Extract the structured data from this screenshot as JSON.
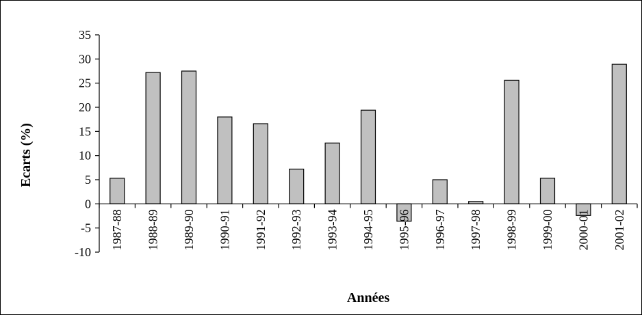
{
  "chart_data": {
    "type": "bar",
    "categories": [
      "1987-88",
      "1988-89",
      "1989-90",
      "1990-91",
      "1991-92",
      "1992-93",
      "1993-94",
      "1994-95",
      "1995-96",
      "1996-97",
      "1997-98",
      "1998-99",
      "1999-00",
      "2000-01",
      "2001-02"
    ],
    "values": [
      5.3,
      27.2,
      27.5,
      18.0,
      16.6,
      7.2,
      12.6,
      19.4,
      -3.6,
      5.0,
      0.5,
      25.6,
      5.3,
      -2.4,
      28.9
    ],
    "xlabel": "Années",
    "ylabel": "Ecarts (%)",
    "ylim": [
      -10,
      35
    ],
    "yticks": [
      35,
      30,
      25,
      20,
      15,
      10,
      5,
      0,
      -5,
      -10
    ],
    "grid": false,
    "colors": {
      "bar_fill": "#c0c0c0",
      "bar_stroke": "#000000"
    }
  }
}
